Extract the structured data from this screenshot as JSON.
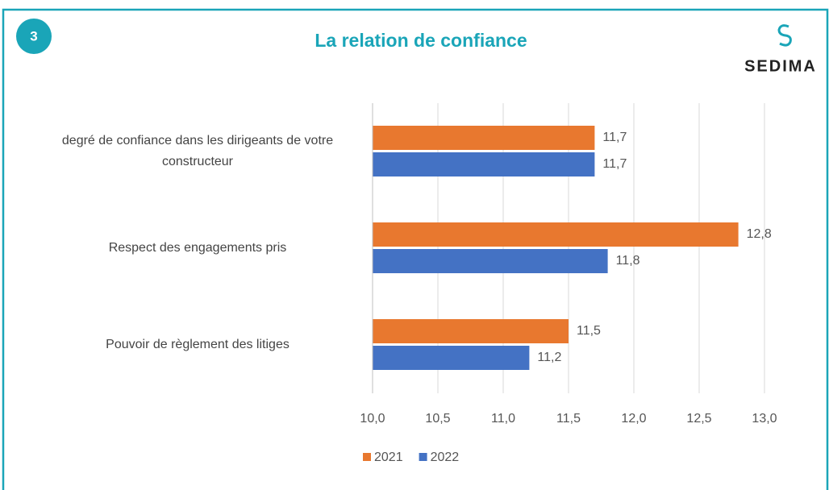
{
  "badge": "3",
  "logo_text": "SEDIMA",
  "chart_data": {
    "type": "barh",
    "title": "La relation de confiance",
    "categories": [
      "degré de confiance dans les dirigeants de votre constructeur",
      "Respect des engagements pris",
      "Pouvoir de règlement des litiges"
    ],
    "series": [
      {
        "name": "2021",
        "color": "#e8782f",
        "values": [
          11.7,
          12.8,
          11.5
        ],
        "value_labels": [
          "11,7",
          "12,8",
          "11,5"
        ]
      },
      {
        "name": "2022",
        "color": "#4472c4",
        "values": [
          11.7,
          11.8,
          11.2
        ],
        "value_labels": [
          "11,7",
          "11,8",
          "11,2"
        ]
      }
    ],
    "xlim": [
      10,
      13
    ],
    "xticks": [
      {
        "value": 10,
        "label": "10,0"
      },
      {
        "value": 10.5,
        "label": "10,5"
      },
      {
        "value": 11,
        "label": "11,0"
      },
      {
        "value": 11.5,
        "label": "11,5"
      },
      {
        "value": 12,
        "label": "12,0"
      },
      {
        "value": 12.5,
        "label": "12,5"
      },
      {
        "value": 13,
        "label": "13,0"
      }
    ],
    "grid": true,
    "legend": "bottom"
  }
}
